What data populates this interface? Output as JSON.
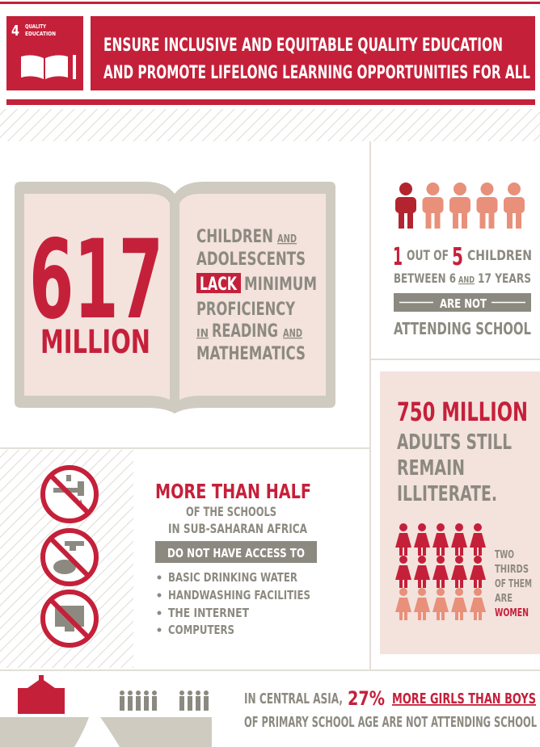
{
  "header": {
    "goal_number": "4",
    "goal_label": [
      "QUALITY",
      "EDUCATION"
    ],
    "title": [
      "ENSURE INCLUSIVE AND EQUITABLE QUALITY EDUCATION",
      "AND PROMOTE LIFELONG LEARNING OPPORTUNITIES FOR ALL"
    ]
  },
  "book": {
    "number": "617",
    "unit": "MILLION",
    "lines": [
      [
        "CHILDREN",
        "AND"
      ],
      [
        "ADOLESCENTS"
      ],
      [
        "LACK",
        "MINIMUM"
      ],
      [
        "PROFICIENCY"
      ],
      [
        "IN",
        "READING",
        "AND"
      ],
      [
        "MATHEMATICS"
      ]
    ]
  },
  "children": {
    "lines": [
      [
        "1",
        "OUT OF",
        "5",
        "CHILDREN"
      ],
      [
        "BETWEEN 6",
        "AND",
        "17 YEARS"
      ]
    ],
    "banner": "ARE NOT",
    "footer": "ATTENDING SCHOOL"
  },
  "adults": {
    "headline": "750 MILLION",
    "lines": [
      "ADULTS STILL",
      "REMAIN",
      "ILLITERATE."
    ],
    "side": [
      "TWO",
      "THIRDS",
      "OF THEM",
      "ARE",
      "WOMEN"
    ]
  },
  "schools": {
    "headline": "MORE THAN HALF",
    "lines": [
      "OF THE SCHOOLS",
      "IN SUB-SAHARAN AFRICA"
    ],
    "banner": "DO NOT HAVE ACCESS TO",
    "items": [
      "BASIC DRINKING WATER",
      "HANDWASHING FACILITIES",
      "THE INTERNET",
      "COMPUTERS"
    ]
  },
  "footer": {
    "lines": [
      [
        "IN CENTRAL ASIA,",
        "27%",
        "MORE GIRLS THAN BOYS"
      ],
      [
        "OF PRIMARY SCHOOL AGE ARE NOT ATTENDING SCHOOL"
      ]
    ]
  }
}
